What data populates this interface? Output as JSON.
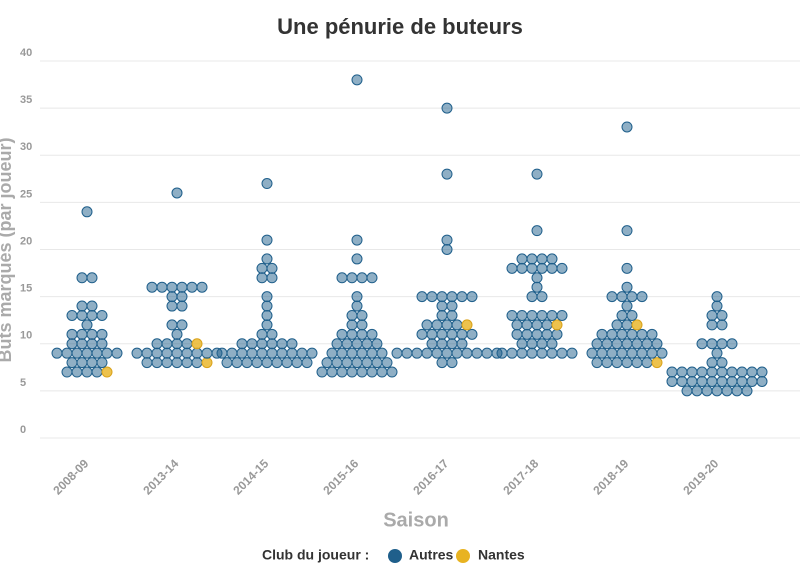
{
  "chart_data": {
    "type": "beeswarm",
    "title": "Une pénurie de buteurs",
    "x_label": "Saison",
    "y_label": "Buts marqués (par joueur)",
    "legend_title": "Club du joueur :",
    "categories": [
      "2008-09",
      "2013-14",
      "2014-15",
      "2015-16",
      "2016-17",
      "2017-18",
      "2018-19",
      "2019-20"
    ],
    "ylim": [
      0,
      40
    ],
    "yticks": [
      0,
      5,
      10,
      15,
      20,
      25,
      30,
      35,
      40
    ],
    "grid": true,
    "series": [
      {
        "name": "Autres",
        "color": "#1f5f8b",
        "values": [
          [
            24,
            17,
            17,
            14,
            14,
            13,
            13,
            13,
            13,
            12,
            11,
            11,
            11,
            11,
            10,
            10,
            10,
            10,
            9,
            9,
            9,
            9,
            9,
            9,
            9,
            8,
            8,
            8,
            8,
            7,
            7,
            7,
            7
          ],
          [
            26,
            16,
            16,
            16,
            16,
            16,
            16,
            15,
            15,
            14,
            14,
            12,
            12,
            11,
            10,
            10,
            10,
            10,
            9,
            9,
            9,
            9,
            9,
            9,
            9,
            9,
            9,
            8,
            8,
            8,
            8,
            8,
            8
          ],
          [
            27,
            21,
            19,
            18,
            18,
            17,
            17,
            15,
            14,
            13,
            12,
            11,
            11,
            10,
            10,
            10,
            10,
            10,
            10,
            9,
            9,
            9,
            9,
            9,
            9,
            9,
            9,
            9,
            9,
            8,
            8,
            8,
            8,
            8,
            8,
            8,
            8,
            8
          ],
          [
            38,
            21,
            19,
            17,
            17,
            17,
            17,
            15,
            14,
            13,
            13,
            12,
            12,
            11,
            11,
            11,
            11,
            10,
            10,
            10,
            10,
            10,
            9,
            9,
            9,
            9,
            9,
            9,
            8,
            8,
            8,
            8,
            8,
            8,
            8,
            7,
            7,
            7,
            7,
            7,
            7,
            7,
            7
          ],
          [
            35,
            28,
            21,
            20,
            15,
            15,
            15,
            15,
            15,
            15,
            14,
            14,
            13,
            13,
            12,
            12,
            12,
            12,
            11,
            11,
            11,
            11,
            11,
            11,
            10,
            10,
            10,
            10,
            9,
            9,
            9,
            9,
            9,
            9,
            9,
            9,
            9,
            9,
            9,
            8,
            8
          ],
          [
            28,
            22,
            19,
            19,
            19,
            19,
            18,
            18,
            18,
            18,
            18,
            18,
            17,
            16,
            15,
            15,
            13,
            13,
            13,
            13,
            13,
            13,
            12,
            12,
            12,
            12,
            11,
            11,
            11,
            11,
            11,
            10,
            10,
            10,
            10,
            9,
            9,
            9,
            9,
            9,
            9,
            9,
            9
          ],
          [
            33,
            22,
            18,
            16,
            15,
            15,
            15,
            15,
            14,
            13,
            13,
            12,
            12,
            11,
            11,
            11,
            11,
            11,
            11,
            10,
            10,
            10,
            10,
            10,
            10,
            10,
            9,
            9,
            9,
            9,
            9,
            9,
            9,
            9,
            8,
            8,
            8,
            8,
            8,
            8
          ],
          [
            15,
            14,
            13,
            13,
            12,
            12,
            10,
            10,
            10,
            10,
            9,
            8,
            8,
            7,
            7,
            7,
            7,
            7,
            7,
            7,
            7,
            7,
            7,
            6,
            6,
            6,
            6,
            6,
            6,
            6,
            6,
            6,
            6,
            5,
            5,
            5,
            5,
            5,
            5,
            5
          ]
        ]
      },
      {
        "name": "Nantes",
        "color": "#e8b321",
        "values": [
          [
            7
          ],
          [
            10,
            8
          ],
          [],
          [],
          [
            12
          ],
          [
            12
          ],
          [
            12,
            8
          ],
          []
        ]
      }
    ]
  }
}
